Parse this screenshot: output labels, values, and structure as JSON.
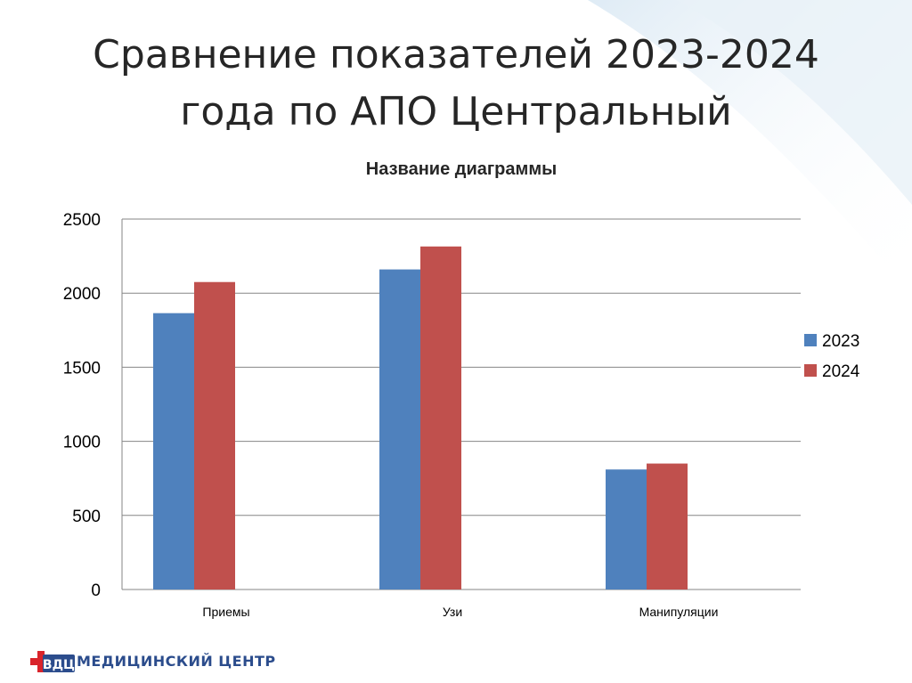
{
  "slide": {
    "title_line1": "Сравнение показателей 2023-2024",
    "title_line2": "года по АПО Центральный"
  },
  "chart_data": {
    "type": "bar",
    "title": "Название диаграммы",
    "categories": [
      "Приемы",
      "Узи",
      "Манипуляции"
    ],
    "series": [
      {
        "name": "2023",
        "values": [
          1865,
          2160,
          810
        ],
        "color": "#4f81bd"
      },
      {
        "name": "2024",
        "values": [
          2075,
          2315,
          850
        ],
        "color": "#c0504d"
      }
    ],
    "ylim": [
      0,
      2500
    ],
    "yticks": [
      0,
      500,
      1000,
      1500,
      2000,
      2500
    ],
    "grid": true,
    "legend": "right"
  },
  "footer": {
    "logo_text": "ВДЦ",
    "brand": "МЕДИЦИНСКИЙ ЦЕНТР"
  }
}
